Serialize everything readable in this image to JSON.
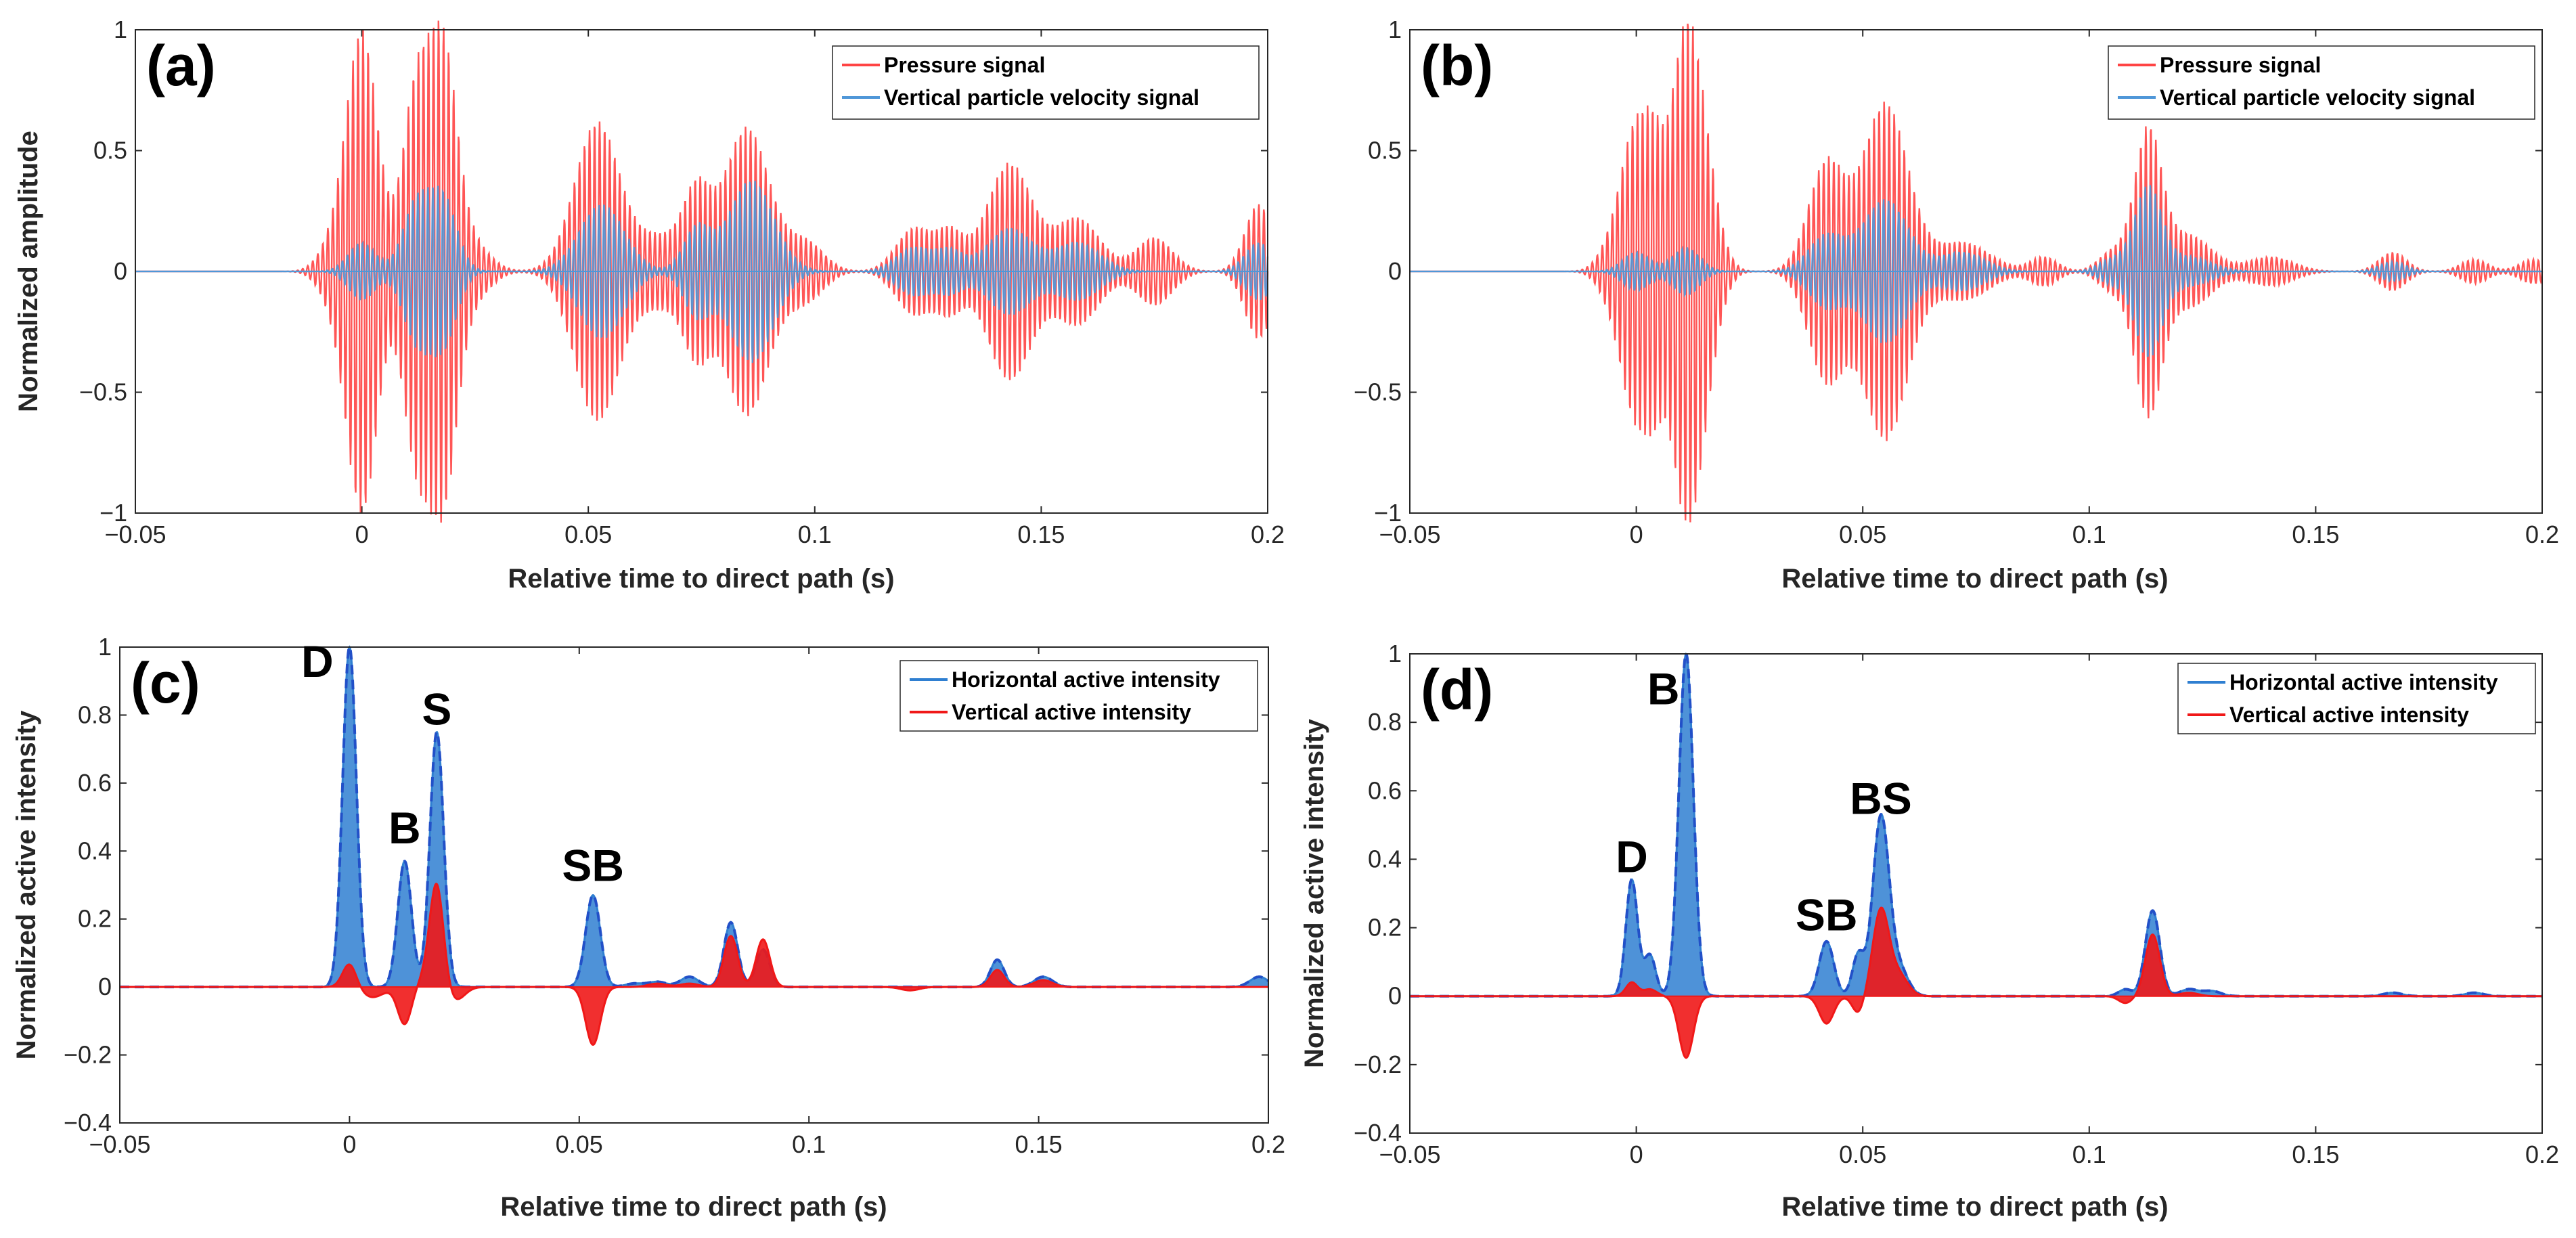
{
  "colors": {
    "pressure": "#ff4444",
    "velocity": "#4f97d8",
    "horizontal": "#2f7fd1",
    "vertical": "#f01818",
    "envelope": "#2250c8"
  },
  "chart_data": [
    {
      "panel_label": "(a)",
      "type": "line",
      "xlabel": "Relative time to direct path (s)",
      "ylabel": "Normalized amplitude",
      "xlim": [
        -0.05,
        0.2
      ],
      "ylim": [
        -1,
        1
      ],
      "xticks": [
        "-0.05",
        "0",
        "0.05",
        "0.1",
        "0.15",
        "0.2"
      ],
      "yticks": [
        "-1",
        "-0.5",
        "0",
        "0.5",
        "1"
      ],
      "legend": [
        "Pressure signal",
        "Vertical particle velocity signal"
      ],
      "legend_position": "top-right",
      "series": [
        {
          "name": "Pressure signal",
          "color": "pressure",
          "freq": 900,
          "bursts": [
            [
              -0.007,
              0.003,
              0.08
            ],
            [
              0.0,
              0.0035,
              1.0
            ],
            [
              0.012,
              0.003,
              0.75
            ],
            [
              0.018,
              0.003,
              0.88
            ],
            [
              0.024,
              0.004,
              0.12
            ],
            [
              0.052,
              0.005,
              0.62
            ],
            [
              0.066,
              0.005,
              0.14
            ],
            [
              0.074,
              0.003,
              0.3
            ],
            [
              0.085,
              0.005,
              0.6
            ],
            [
              0.098,
              0.004,
              0.12
            ],
            [
              0.122,
              0.004,
              0.18
            ],
            [
              0.13,
              0.003,
              0.15
            ],
            [
              0.143,
              0.005,
              0.45
            ],
            [
              0.158,
              0.005,
              0.22
            ],
            [
              0.175,
              0.004,
              0.14
            ],
            [
              0.198,
              0.003,
              0.28
            ]
          ]
        },
        {
          "name": "Vertical particle velocity signal",
          "color": "velocity",
          "freq": 900,
          "bursts": [
            [
              0.0,
              0.003,
              0.12
            ],
            [
              0.012,
              0.003,
              0.28
            ],
            [
              0.018,
              0.003,
              0.3
            ],
            [
              0.053,
              0.005,
              0.28
            ],
            [
              0.074,
              0.003,
              0.18
            ],
            [
              0.086,
              0.005,
              0.38
            ],
            [
              0.122,
              0.004,
              0.1
            ],
            [
              0.13,
              0.003,
              0.08
            ],
            [
              0.143,
              0.005,
              0.18
            ],
            [
              0.158,
              0.005,
              0.12
            ],
            [
              0.198,
              0.003,
              0.12
            ]
          ]
        }
      ]
    },
    {
      "panel_label": "(b)",
      "type": "line",
      "xlabel": "Relative time to direct path (s)",
      "ylabel": "",
      "xlim": [
        -0.05,
        0.2
      ],
      "ylim": [
        -1,
        1
      ],
      "xticks": [
        "-0.05",
        "0",
        "0.05",
        "0.1",
        "0.15",
        "0.2"
      ],
      "yticks": [
        "-1",
        "-0.5",
        "0",
        "0.5",
        "1"
      ],
      "legend": [
        "Pressure signal",
        "Vertical particle velocity signal"
      ],
      "legend_position": "top-right",
      "series": [
        {
          "name": "Pressure signal",
          "color": "pressure",
          "freq": 900,
          "bursts": [
            [
              -0.005,
              0.003,
              0.12
            ],
            [
              0.0,
              0.003,
              0.57
            ],
            [
              0.004,
              0.002,
              0.3
            ],
            [
              0.011,
              0.0035,
              1.0
            ],
            [
              0.016,
              0.003,
              0.2
            ],
            [
              0.042,
              0.004,
              0.45
            ],
            [
              0.055,
              0.005,
              0.7
            ],
            [
              0.072,
              0.006,
              0.12
            ],
            [
              0.09,
              0.003,
              0.06
            ],
            [
              0.105,
              0.003,
              0.08
            ],
            [
              0.113,
              0.003,
              0.58
            ],
            [
              0.122,
              0.005,
              0.15
            ],
            [
              0.14,
              0.005,
              0.06
            ],
            [
              0.167,
              0.003,
              0.08
            ],
            [
              0.185,
              0.003,
              0.05
            ],
            [
              0.198,
              0.003,
              0.05
            ]
          ]
        },
        {
          "name": "Vertical particle velocity signal",
          "color": "velocity",
          "freq": 900,
          "bursts": [
            [
              0.0,
              0.003,
              0.08
            ],
            [
              0.011,
              0.003,
              0.1
            ],
            [
              0.042,
              0.004,
              0.15
            ],
            [
              0.055,
              0.005,
              0.3
            ],
            [
              0.072,
              0.005,
              0.08
            ],
            [
              0.105,
              0.003,
              0.05
            ],
            [
              0.113,
              0.003,
              0.35
            ],
            [
              0.122,
              0.005,
              0.06
            ],
            [
              0.167,
              0.003,
              0.04
            ]
          ]
        }
      ]
    },
    {
      "panel_label": "(c)",
      "type": "line",
      "xlabel": "Relative time to direct path (s)",
      "ylabel": "Normalized active intensity",
      "xlim": [
        -0.05,
        0.2
      ],
      "ylim": [
        -0.4,
        1
      ],
      "xticks": [
        "-0.05",
        "0",
        "0.05",
        "0.1",
        "0.15",
        "0.2"
      ],
      "yticks": [
        "-0.4",
        "-0.2",
        "0",
        "0.2",
        "0.4",
        "0.6",
        "0.8",
        "1"
      ],
      "legend": [
        "Horizontal active intensity",
        "Vertical active intensity"
      ],
      "legend_position": "top-right",
      "series": [
        {
          "name": "Horizontal active intensity",
          "color": "horizontal",
          "freq": 0,
          "peaks": [
            [
              0.0,
              0.0015,
              1.0
            ],
            [
              0.012,
              0.0015,
              0.37
            ],
            [
              0.019,
              0.0015,
              0.75
            ],
            [
              0.053,
              0.0016,
              0.27
            ],
            [
              0.062,
              0.002,
              0.01
            ],
            [
              0.067,
              0.002,
              0.015
            ],
            [
              0.074,
              0.002,
              0.03
            ],
            [
              0.083,
              0.0015,
              0.19
            ],
            [
              0.09,
              0.0015,
              0.11
            ],
            [
              0.141,
              0.0015,
              0.08
            ],
            [
              0.151,
              0.002,
              0.03
            ],
            [
              0.198,
              0.002,
              0.03
            ]
          ]
        },
        {
          "name": "Vertical active intensity",
          "color": "vertical",
          "freq": 0,
          "peaks": [
            [
              0.0,
              0.0015,
              0.07
            ],
            [
              0.005,
              0.0025,
              -0.03
            ],
            [
              0.012,
              0.0015,
              -0.11
            ],
            [
              0.017,
              0.002,
              0.03
            ],
            [
              0.019,
              0.0015,
              0.29
            ],
            [
              0.023,
              0.002,
              -0.04
            ],
            [
              0.053,
              0.0016,
              -0.17
            ],
            [
              0.067,
              0.002,
              0.01
            ],
            [
              0.074,
              0.002,
              0.01
            ],
            [
              0.083,
              0.0015,
              0.15
            ],
            [
              0.09,
              0.0015,
              0.14
            ],
            [
              0.122,
              0.002,
              -0.01
            ],
            [
              0.141,
              0.0015,
              0.05
            ],
            [
              0.151,
              0.002,
              0.02
            ]
          ]
        }
      ],
      "annotations": [
        {
          "text": "D",
          "x": -0.007,
          "y": 0.96
        },
        {
          "text": "S",
          "x": 0.019,
          "y": 0.82
        },
        {
          "text": "B",
          "x": 0.012,
          "y": 0.47
        },
        {
          "text": "SB",
          "x": 0.053,
          "y": 0.36
        }
      ]
    },
    {
      "panel_label": "(d)",
      "type": "line",
      "xlabel": "Relative time to direct path (s)",
      "ylabel": "Normalized active intensity",
      "xlim": [
        -0.05,
        0.2
      ],
      "ylim": [
        -0.4,
        1
      ],
      "xticks": [
        "-0.05",
        "0",
        "0.05",
        "0.1",
        "0.15",
        "0.2"
      ],
      "yticks": [
        "-0.4",
        "-0.2",
        "0",
        "0.2",
        "0.4",
        "0.6",
        "0.8",
        "1"
      ],
      "legend": [
        "Horizontal active intensity",
        "Vertical active intensity"
      ],
      "legend_position": "top-right",
      "series": [
        {
          "name": "Horizontal active intensity",
          "color": "horizontal",
          "freq": 0,
          "peaks": [
            [
              -0.001,
              0.0013,
              0.34
            ],
            [
              0.003,
              0.0013,
              0.12
            ],
            [
              0.011,
              0.0016,
              1.0
            ],
            [
              0.042,
              0.0016,
              0.16
            ],
            [
              0.049,
              0.0013,
              0.12
            ],
            [
              0.054,
              0.0018,
              0.52
            ],
            [
              0.058,
              0.002,
              0.08
            ],
            [
              0.108,
              0.0015,
              0.02
            ],
            [
              0.114,
              0.0016,
              0.25
            ],
            [
              0.122,
              0.002,
              0.02
            ],
            [
              0.127,
              0.002,
              0.015
            ],
            [
              0.167,
              0.002,
              0.01
            ],
            [
              0.185,
              0.002,
              0.01
            ]
          ]
        },
        {
          "name": "Vertical active intensity",
          "color": "vertical",
          "freq": 0,
          "peaks": [
            [
              -0.001,
              0.0013,
              0.04
            ],
            [
              0.003,
              0.0015,
              0.02
            ],
            [
              0.011,
              0.0016,
              -0.18
            ],
            [
              0.042,
              0.0016,
              -0.08
            ],
            [
              0.049,
              0.0013,
              -0.05
            ],
            [
              0.054,
              0.0018,
              0.25
            ],
            [
              0.058,
              0.002,
              0.06
            ],
            [
              0.108,
              0.0015,
              -0.02
            ],
            [
              0.114,
              0.0016,
              0.18
            ],
            [
              0.122,
              0.002,
              0.01
            ]
          ]
        }
      ],
      "annotations": [
        {
          "text": "B",
          "x": 0.006,
          "y": 0.9
        },
        {
          "text": "D",
          "x": -0.001,
          "y": 0.41
        },
        {
          "text": "BS",
          "x": 0.054,
          "y": 0.58
        },
        {
          "text": "SB",
          "x": 0.042,
          "y": 0.24
        }
      ]
    }
  ]
}
